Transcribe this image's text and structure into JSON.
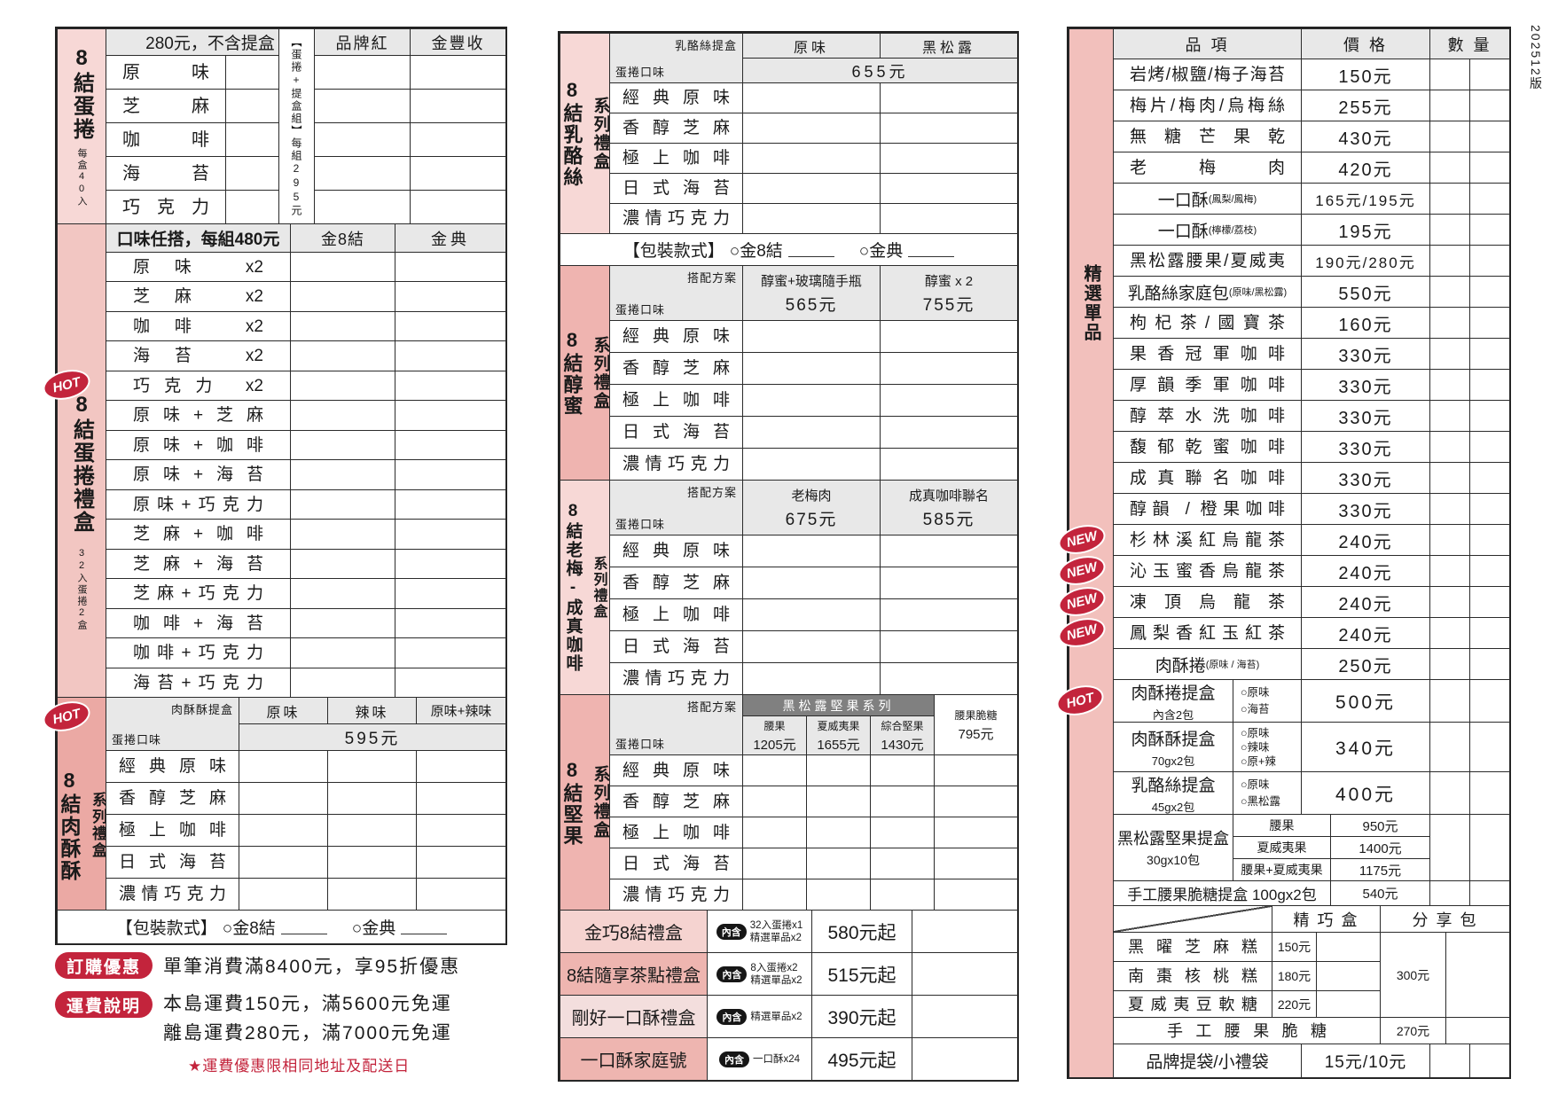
{
  "version": "202512版",
  "palette": {
    "pink_pale": "#f7d8d6",
    "pink_soft": "#f2c6c2",
    "pink_dark": "#eba9a4",
    "pink_mid": "#efb4b0",
    "pink_right": "#f2c0bc",
    "combo_light": "#f5d3d0",
    "combo_pale": "#f3dedd",
    "combo_dark": "#eeb5b0",
    "gray_header": "#e8e8e8",
    "dark_header": "#808080",
    "red": "#c3243c",
    "badge_black": "#161616"
  },
  "left": {
    "egg_roll": {
      "sidebar_title": "8結蛋捲",
      "sidebar_note": "每盒40入",
      "header": "280元，不含提盒",
      "combo_note": "【蛋捲+提盒組】每組295元",
      "columns": [
        "品牌紅",
        "金豐收"
      ],
      "flavors": [
        "原味",
        "芝麻",
        "咖啡",
        "海苔",
        "巧克力"
      ]
    },
    "gift_box": {
      "badge": "HOT",
      "sidebar_title": "8結蛋捲禮盒",
      "sidebar_note": "32入蛋捲2盒",
      "header": "口味任搭，每組480元",
      "columns": [
        "金8結",
        "金典"
      ],
      "rows": [
        "原味 x2",
        "芝麻 x2",
        "咖啡 x2",
        "海苔 x2",
        "巧克力 x2",
        "原味+芝麻",
        "原味+咖啡",
        "原味+海苔",
        "原味+巧克力",
        "芝麻+咖啡",
        "芝麻+海苔",
        "芝麻+巧克力",
        "咖啡+海苔",
        "咖啡+巧克力",
        "海苔+巧克力"
      ]
    },
    "pork_crisp": {
      "badge": "HOT",
      "sidebar_title": "8結肉酥酥",
      "sidebar_sub": "系列禮盒",
      "corner_top": "肉酥酥提盒",
      "corner_bottom": "蛋捲口味",
      "columns": [
        "原味",
        "辣味",
        "原味+辣味"
      ],
      "merged_price": "595元",
      "flavors": [
        "經典原味",
        "香醇芝麻",
        "極上咖啡",
        "日式海苔",
        "濃情巧克力"
      ]
    },
    "packaging": {
      "label": "【包裝款式】",
      "opt1": "○金8結",
      "opt2": "○金典"
    },
    "notes": {
      "badge1": "訂購優惠",
      "text1": "單筆消費滿8400元，享95折優惠",
      "badge2": "運費說明",
      "text2a": "本島運費150元，滿5600元免運",
      "text2b": "離島運費280元，滿7000元免運",
      "star": "★運費優惠限相同地址及配送日"
    }
  },
  "middle": {
    "flavors": [
      "經典原味",
      "香醇芝麻",
      "極上咖啡",
      "日式海苔",
      "濃情巧克力"
    ],
    "packaging": {
      "label": "【包裝款式】",
      "opt1": "○金8結",
      "opt2": "○金典"
    },
    "sections": [
      {
        "sidebar_title": "8結乳酪絲",
        "sidebar_sub": "系列禮盒",
        "tone": "light",
        "corner_top": "乳酪絲提盒",
        "corner_bottom": "蛋捲口味",
        "columns": [
          {
            "label": "原味"
          },
          {
            "label": "黑松露"
          }
        ],
        "merged_price": "655元",
        "packaging": true
      },
      {
        "sidebar_title": "8結醇蜜",
        "sidebar_sub": "系列禮盒",
        "tone": "dark",
        "corner_top": "搭配方案",
        "corner_bottom": "蛋捲口味",
        "columns": [
          {
            "label": "醇蜜+玻璃隨手瓶",
            "price": "565元"
          },
          {
            "label": "醇蜜 x 2",
            "price": "755元"
          }
        ]
      },
      {
        "sidebar_title": "8結老梅-成真咖啡",
        "sidebar_sub": "系列禮盒",
        "tone": "light",
        "corner_top": "搭配方案",
        "corner_bottom": "蛋捲口味",
        "columns": [
          {
            "label": "老梅肉",
            "price": "675元"
          },
          {
            "label": "成真咖啡聯名",
            "price": "585元"
          }
        ]
      },
      {
        "sidebar_title": "8結堅果",
        "sidebar_sub": "系列禮盒",
        "tone": "dark",
        "corner_top": "搭配方案",
        "corner_bottom": "蛋捲口味",
        "group_header": "黑松露堅果系列",
        "columns": [
          {
            "label": "腰果",
            "price": "1205元",
            "group": true
          },
          {
            "label": "夏威夷果",
            "price": "1655元",
            "group": true
          },
          {
            "label": "綜合堅果",
            "price": "1430元",
            "group": true
          },
          {
            "label": "腰果脆糖",
            "price": "795元"
          }
        ]
      }
    ],
    "combos": [
      {
        "name": "金巧8結禮盒",
        "badge": "內含",
        "contents": [
          "32入蛋捲x1",
          "精選單品x2"
        ],
        "price": "580元起",
        "tone": "light"
      },
      {
        "name": "8結隨享茶點禮盒",
        "badge": "內含",
        "contents": [
          "8入蛋捲x2",
          "精選單品x2"
        ],
        "price": "515元起",
        "tone": "dark"
      },
      {
        "name": "剛好一口酥禮盒",
        "badge": "內含",
        "contents": [
          "精選單品x2"
        ],
        "price": "390元起",
        "tone": "pale"
      },
      {
        "name": "一口酥家庭號",
        "badge": "內含",
        "contents": [
          "一口酥x24"
        ],
        "price": "495元起",
        "tone": "dark"
      }
    ]
  },
  "right": {
    "sidebar_label": "精選單品",
    "headers": {
      "item": "品 項",
      "price": "價 格",
      "qty": "數 量"
    },
    "items": [
      {
        "name": "岩烤/椒鹽/梅子海苔",
        "price": "150元"
      },
      {
        "name": "梅片/梅肉/烏梅絲",
        "price": "255元"
      },
      {
        "name": "無糖芒果乾",
        "price": "430元"
      },
      {
        "name": "老梅肉",
        "price": "420元"
      },
      {
        "name": "一口酥",
        "small": "(鳳梨/鳳梅)",
        "price": "165元/195元"
      },
      {
        "name": "一口酥",
        "small": "(檸檬/荔枝)",
        "price": "195元"
      },
      {
        "name": "黑松露腰果/夏威夷果",
        "price": "190元/280元"
      },
      {
        "name": "乳酪絲家庭包",
        "small": "(原味/黑松露)",
        "price": "550元"
      },
      {
        "name": "枸杞茶/國寶茶",
        "price": "160元"
      },
      {
        "name": "果香冠軍咖啡",
        "price": "330元"
      },
      {
        "name": "厚韻季軍咖啡",
        "price": "330元"
      },
      {
        "name": "醇萃水洗咖啡",
        "price": "330元"
      },
      {
        "name": "馥郁乾蜜咖啡",
        "price": "330元"
      },
      {
        "name": "成真聯名咖啡",
        "price": "330元"
      },
      {
        "name": "醇韻 / 橙果咖啡",
        "price": "330元"
      },
      {
        "name": "杉林溪紅烏龍茶",
        "price": "240元",
        "badge": "NEW"
      },
      {
        "name": "沁玉蜜香烏龍茶",
        "price": "240元",
        "badge": "NEW"
      },
      {
        "name": "凍頂烏龍茶",
        "price": "240元",
        "badge": "NEW"
      },
      {
        "name": "鳳梨香紅玉紅茶",
        "price": "240元",
        "badge": "NEW"
      },
      {
        "name": "肉酥捲",
        "small": "(原味 / 海苔)",
        "price": "250元"
      }
    ],
    "option_rows": [
      {
        "name": "肉酥捲提盒",
        "sub": "內含2包",
        "options": [
          "○原味",
          "○海苔"
        ],
        "price": "500元",
        "badge": "HOT"
      },
      {
        "name": "肉酥酥提盒",
        "sub": "70gx2包",
        "options": [
          "○原味",
          "○辣味",
          "○原+辣"
        ],
        "price": "340元"
      },
      {
        "name": "乳酪絲提盒",
        "sub": "45gx2包",
        "options": [
          "○原味",
          "○黑松露"
        ],
        "price": "400元"
      }
    ],
    "nut_box": {
      "name": "黑松露堅果提盒",
      "sub": "30gx10包",
      "variants": [
        {
          "label": "腰果",
          "price": "950元"
        },
        {
          "label": "夏威夷果",
          "price": "1400元"
        },
        {
          "label": "腰果+夏威夷果",
          "price": "1175元"
        }
      ]
    },
    "cashew_row": {
      "name": "手工腰果脆糖提盒 100gx2包",
      "price": "540元"
    },
    "sweets": {
      "col1": "精 巧 盒",
      "col2": "分 享 包",
      "rows": [
        {
          "name": "黑曜芝麻糕",
          "price": "150元"
        },
        {
          "name": "南棗核桃糕",
          "price": "180元"
        },
        {
          "name": "夏威夷豆軟糖",
          "price": "220元"
        }
      ],
      "share_price": "300元",
      "last_row": {
        "name": "手工腰果脆糖",
        "price": "270元"
      }
    },
    "bag_row": {
      "name": "品牌提袋/小禮袋",
      "price": "15元/10元"
    }
  }
}
